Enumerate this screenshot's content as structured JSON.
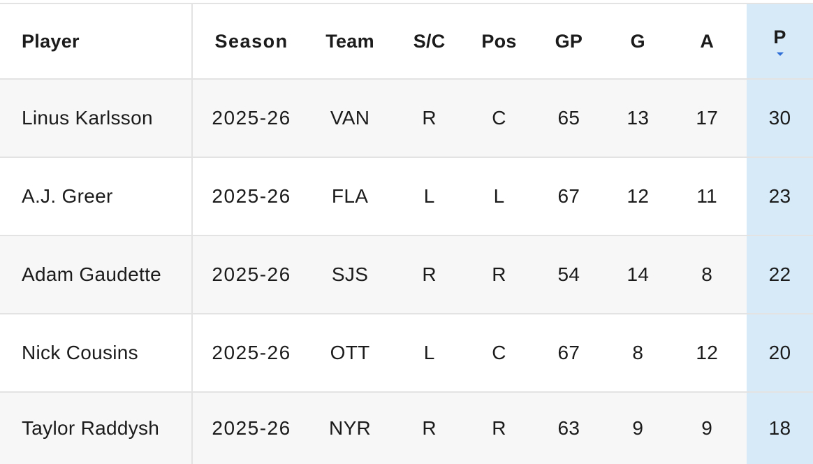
{
  "table": {
    "columns": {
      "player": "Player",
      "season": "Season",
      "team": "Team",
      "sc": "S/C",
      "pos": "Pos",
      "gp": "GP",
      "g": "G",
      "a": "A",
      "p": "P"
    },
    "sorted_column": "P",
    "sort_direction": "descending",
    "sorted_column_color": "#d6eaf8",
    "rows": [
      {
        "player": "Linus Karlsson",
        "season": "2025-26",
        "team": "VAN",
        "sc": "R",
        "pos": "C",
        "gp": "65",
        "g": "13",
        "a": "17",
        "p": "30"
      },
      {
        "player": "A.J. Greer",
        "season": "2025-26",
        "team": "FLA",
        "sc": "L",
        "pos": "L",
        "gp": "67",
        "g": "12",
        "a": "11",
        "p": "23"
      },
      {
        "player": "Adam Gaudette",
        "season": "2025-26",
        "team": "SJS",
        "sc": "R",
        "pos": "R",
        "gp": "54",
        "g": "14",
        "a": "8",
        "p": "22"
      },
      {
        "player": "Nick Cousins",
        "season": "2025-26",
        "team": "OTT",
        "sc": "L",
        "pos": "C",
        "gp": "67",
        "g": "8",
        "a": "12",
        "p": "20"
      },
      {
        "player": "Taylor Raddysh",
        "season": "2025-26",
        "team": "NYR",
        "sc": "R",
        "pos": "R",
        "gp": "63",
        "g": "9",
        "a": "9",
        "p": "18"
      }
    ]
  }
}
